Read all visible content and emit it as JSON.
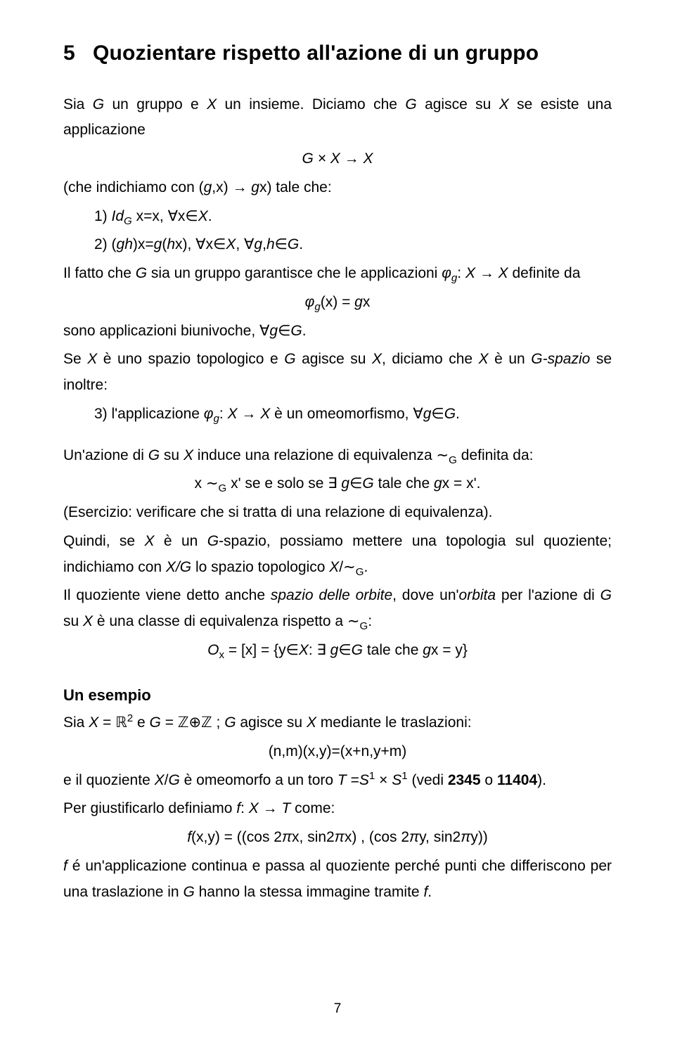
{
  "section": {
    "number": "5",
    "title": "Quozientare rispetto all'azione di un gruppo"
  },
  "p1": {
    "line1_a": "Sia ",
    "line1_b": " un gruppo e ",
    "line1_c": " un insieme. Diciamo che ",
    "line1_d": " agisce su ",
    "line1_e": " se esiste una applicazione",
    "formula1": "G × X → X",
    "line2_a": "(che indichiamo con (",
    "line2_b": ",x) → ",
    "line2_c": "x) tale che:",
    "item1_a": "1) ",
    "item1_b": " x=x, ∀x∈",
    "item1_c": ".",
    "item2_a": "2) (",
    "item2_b": ")x=",
    "item2_c": "(",
    "item2_d": "x), ∀x∈",
    "item2_e": ", ∀",
    "item2_f": ",",
    "item2_g": "∈",
    "item2_h": "."
  },
  "p2": {
    "line1_a": "Il fatto che ",
    "line1_b": " sia un gruppo garantisce che le applicazioni ",
    "line1_c": ": ",
    "line1_d": " → ",
    "line1_e": " definite da",
    "formula_a": "(x) = ",
    "formula_b": "x",
    "line2_a": "sono applicazioni biunivoche, ∀",
    "line2_b": "∈",
    "line2_c": "."
  },
  "p3": {
    "line1_a": "Se ",
    "line1_b": " è uno spazio topologico e ",
    "line1_c": " agisce su ",
    "line1_d": ", diciamo che ",
    "line1_e": " è un ",
    "line1_f": "-spazio",
    "line1_g": " se inoltre:",
    "item3_a": "3) l'applicazione ",
    "item3_b": ": ",
    "item3_c": " → ",
    "item3_d": " è un omeomorfismo, ∀",
    "item3_e": "∈",
    "item3_f": "."
  },
  "p4": {
    "line1_a": "Un'azione di ",
    "line1_b": " su ",
    "line1_c": " induce una relazione di equivalenza ∼",
    "line1_d": "  definita da:",
    "formula_a": "x ∼",
    "formula_b": " x' se e solo se ∃ ",
    "formula_c": "∈",
    "formula_d": " tale che ",
    "formula_e": "x = x'.",
    "line2": "(Esercizio: verificare che si tratta di una relazione di equivalenza).",
    "line3_a": "Quindi, se ",
    "line3_b": " è un ",
    "line3_c": "-spazio, possiamo mettere una topologia sul quoziente; indichiamo con ",
    "line3_d": "/",
    "line3_e": " lo spazio topologico ",
    "line3_f": "/∼",
    "line3_g": ".",
    "line4_a": "Il quoziente viene detto anche ",
    "line4_b": "spazio delle orbite",
    "line4_c": ", dove un'",
    "line4_d": "orbita",
    "line4_e": " per l'azione di ",
    "line4_f": " su ",
    "line4_g": "  è una classe di equivalenza rispetto a  ∼",
    "line4_h": ":",
    "formula2_a": "O",
    "formula2_b": " = [x] = {y∈",
    "formula2_c": ":  ∃ ",
    "formula2_d": "∈",
    "formula2_e": " tale che ",
    "formula2_f": "x = y}"
  },
  "example": {
    "heading": "Un esempio",
    "line1_a": "Sia ",
    "line1_b": " = ℝ",
    "line1_c": " e ",
    "line1_d": " = ℤ⊕ℤ ; ",
    "line1_e": " agisce su ",
    "line1_f": " mediante le traslazioni:",
    "formula1": "(n,m)(x,y)=(x+n,y+m)",
    "line2_a": "e il quoziente ",
    "line2_b": "/",
    "line2_c": " è omeomorfo a un toro ",
    "line2_d": " =",
    "line2_e": " × ",
    "line2_f": " (vedi ",
    "line2_g": "2345",
    "line2_h": " o ",
    "line2_i": "11404",
    "line2_j": ").",
    "line3_a": "Per giustificarlo definiamo ",
    "line3_b": ": ",
    "line3_c": " → ",
    "line3_d": " come:",
    "formula2_a": "(x,y) = ((cos 2",
    "formula2_b": "x, sin2",
    "formula2_c": "x) , (cos 2",
    "formula2_d": "y, sin2",
    "formula2_e": "y))",
    "line4_a": "  é un'applicazione continua e passa al quoziente perché punti che differiscono per una traslazione in ",
    "line4_b": " hanno la stessa immagine tramite ",
    "line4_c": "."
  },
  "symbols": {
    "G": "G",
    "X": "X",
    "g": "g",
    "h": "h",
    "Id": "Id",
    "phi": "φ",
    "pi": "π",
    "f": "f",
    "T": "T",
    "S": "S",
    "sup1": "1",
    "sup2": "2",
    "subx": "x",
    "subG": "G",
    "subg": "g"
  },
  "pagenum": "7"
}
